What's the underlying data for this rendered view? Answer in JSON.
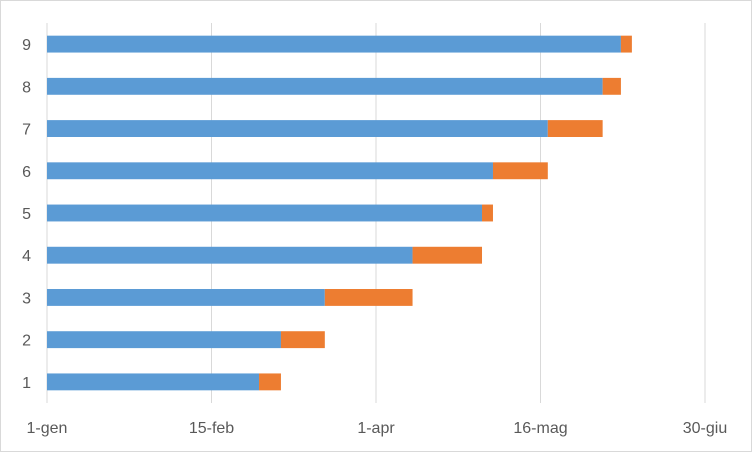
{
  "chart_data": {
    "type": "bar",
    "orientation": "horizontal",
    "stacked": true,
    "categories": [
      "1",
      "2",
      "3",
      "4",
      "5",
      "6",
      "7",
      "8",
      "9"
    ],
    "x_axis": {
      "type": "date",
      "ticks": [
        {
          "date": "1-gen",
          "day": 0
        },
        {
          "date": "15-feb",
          "day": 45
        },
        {
          "date": "1-apr",
          "day": 90
        },
        {
          "date": "16-mag",
          "day": 135
        },
        {
          "date": "30-giu",
          "day": 180
        }
      ],
      "range": [
        "1-gen",
        "ultimo tick dopo 30-giu"
      ]
    },
    "series": [
      {
        "color": "#5b9bd5",
        "start_dates": [
          "28-feb",
          "6-mar",
          "18-mar",
          "11-apr",
          "30-apr",
          "3-mag",
          "18-mag",
          "2-giu",
          "7-giu"
        ]
      },
      {
        "color": "#ed7d31",
        "end_dates": [
          "6-mar",
          "18-mar",
          "11-apr",
          "30-apr",
          "3-mag",
          "18-mag",
          "2-giu",
          "7-giu",
          "10-giu"
        ]
      }
    ],
    "grid": true,
    "legend": "none"
  }
}
